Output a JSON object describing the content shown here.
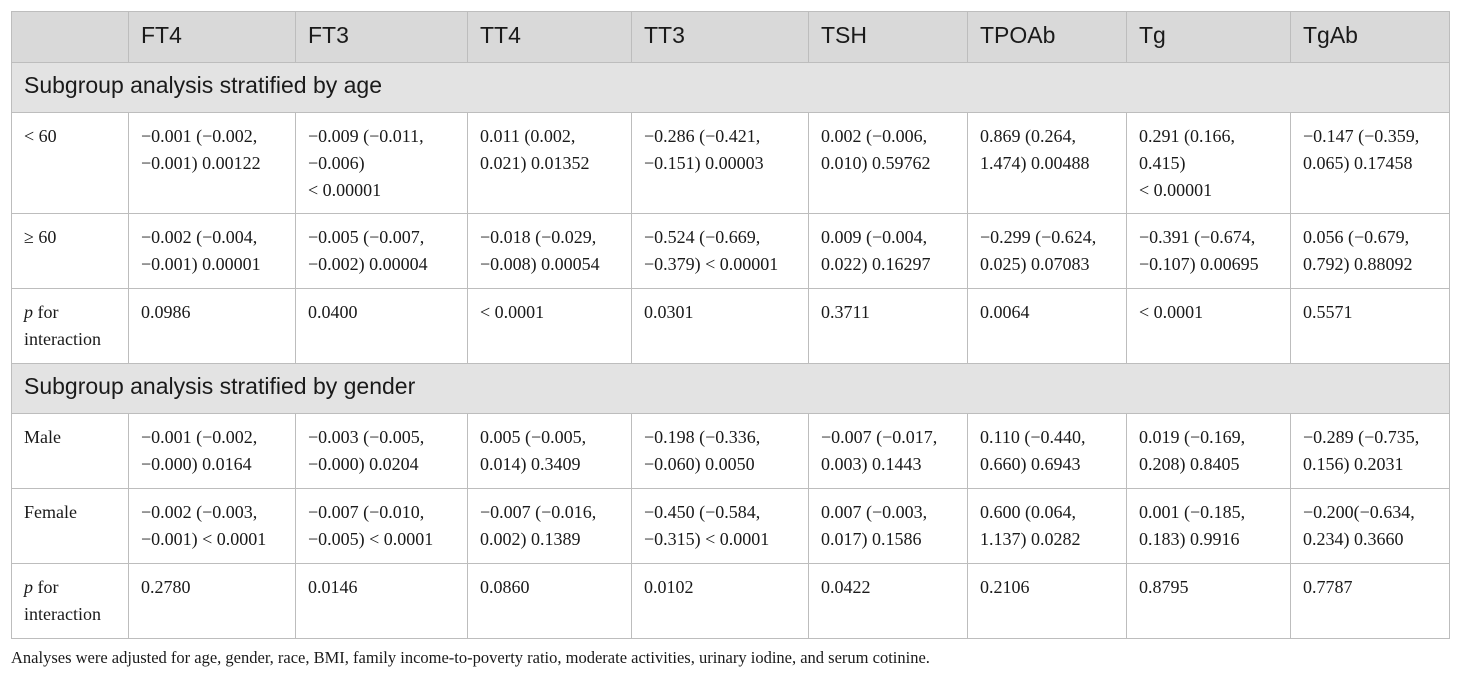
{
  "table": {
    "columns": [
      "",
      "FT4",
      "FT3",
      "TT4",
      "TT3",
      "TSH",
      "TPOAb",
      "Tg",
      "TgAb"
    ],
    "sections": [
      {
        "title": "Subgroup analysis stratified by age",
        "rows": [
          {
            "label": "< 60",
            "cells": [
              [
                "−0.001 (−0.002,",
                "−0.001) 0.00122"
              ],
              [
                "−0.009 (−0.011,",
                "−0.006)",
                "< 0.00001"
              ],
              [
                "0.011 (0.002,",
                "0.021) 0.01352"
              ],
              [
                "−0.286 (−0.421,",
                "−0.151) 0.00003"
              ],
              [
                "0.002 (−0.006,",
                "0.010) 0.59762"
              ],
              [
                "0.869 (0.264,",
                "1.474) 0.00488"
              ],
              [
                "0.291 (0.166,",
                "0.415)",
                "< 0.00001"
              ],
              [
                "−0.147 (−0.359,",
                "0.065) 0.17458"
              ]
            ]
          },
          {
            "label": "≥ 60",
            "cells": [
              [
                "−0.002 (−0.004,",
                "−0.001) 0.00001"
              ],
              [
                "−0.005 (−0.007,",
                "−0.002) 0.00004"
              ],
              [
                "−0.018 (−0.029,",
                "−0.008) 0.00054"
              ],
              [
                "−0.524 (−0.669,",
                "−0.379) < 0.00001"
              ],
              [
                "0.009 (−0.004,",
                "0.022) 0.16297"
              ],
              [
                "−0.299 (−0.624,",
                "0.025) 0.07083"
              ],
              [
                "−0.391 (−0.674,",
                "−0.107) 0.00695"
              ],
              [
                "0.056 (−0.679,",
                "0.792) 0.88092"
              ]
            ]
          },
          {
            "label_italic": "p",
            "label_rest": " for",
            "label_line2": "interaction",
            "cells": [
              [
                "0.0986"
              ],
              [
                "0.0400"
              ],
              [
                "< 0.0001"
              ],
              [
                "0.0301"
              ],
              [
                "0.3711"
              ],
              [
                "0.0064"
              ],
              [
                "< 0.0001"
              ],
              [
                "0.5571"
              ]
            ]
          }
        ]
      },
      {
        "title": "Subgroup analysis stratified by gender",
        "rows": [
          {
            "label": "Male",
            "cells": [
              [
                "−0.001 (−0.002,",
                "−0.000) 0.0164"
              ],
              [
                "−0.003 (−0.005,",
                "−0.000) 0.0204"
              ],
              [
                "0.005 (−0.005,",
                "0.014) 0.3409"
              ],
              [
                "−0.198 (−0.336,",
                "−0.060) 0.0050"
              ],
              [
                "−0.007 (−0.017,",
                "0.003) 0.1443"
              ],
              [
                "0.110 (−0.440,",
                "0.660) 0.6943"
              ],
              [
                "0.019 (−0.169,",
                "0.208) 0.8405"
              ],
              [
                "−0.289 (−0.735,",
                "0.156) 0.2031"
              ]
            ]
          },
          {
            "label": "Female",
            "cells": [
              [
                "−0.002 (−0.003,",
                "−0.001) < 0.0001"
              ],
              [
                "−0.007 (−0.010,",
                "−0.005) < 0.0001"
              ],
              [
                "−0.007 (−0.016,",
                "0.002) 0.1389"
              ],
              [
                "−0.450 (−0.584,",
                "−0.315) < 0.0001"
              ],
              [
                "0.007 (−0.003,",
                "0.017) 0.1586"
              ],
              [
                "0.600 (0.064,",
                "1.137) 0.0282"
              ],
              [
                "0.001 (−0.185,",
                "0.183) 0.9916"
              ],
              [
                "−0.200(−0.634,",
                "0.234) 0.3660"
              ]
            ]
          },
          {
            "label_italic": "p",
            "label_rest": " for",
            "label_line2": "interaction",
            "cells": [
              [
                "0.2780"
              ],
              [
                "0.0146"
              ],
              [
                "0.0860"
              ],
              [
                "0.0102"
              ],
              [
                "0.0422"
              ],
              [
                "0.2106"
              ],
              [
                "0.8795"
              ],
              [
                "0.7787"
              ]
            ]
          }
        ]
      }
    ]
  },
  "footnote": "Analyses were adjusted for age, gender, race, BMI, family income-to-poverty ratio, moderate activities, urinary iodine, and serum cotinine."
}
